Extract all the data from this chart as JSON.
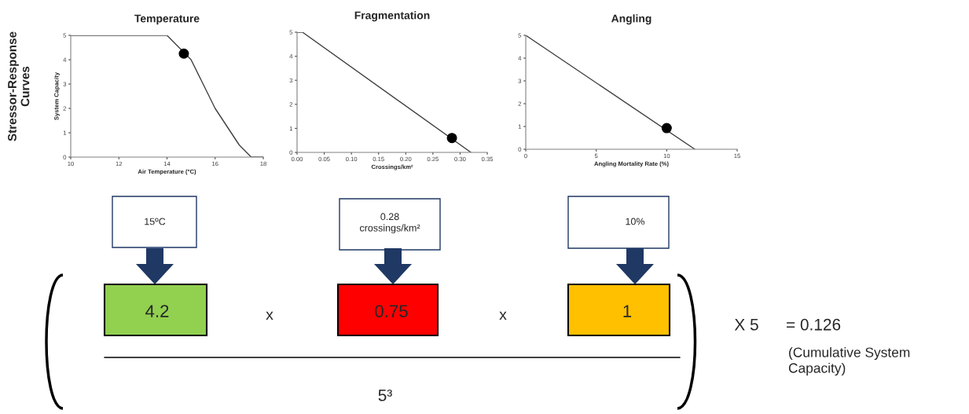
{
  "chart_data": [
    {
      "type": "line",
      "title": "Temperature",
      "xlabel": "Air Temperature (°C)",
      "ylabel": "System Capacity",
      "xlim": [
        10,
        18
      ],
      "xticks": [
        10,
        12,
        14,
        16,
        18
      ],
      "ylim": [
        0,
        5
      ],
      "yticks": [
        0,
        1,
        2,
        3,
        4,
        5
      ],
      "annotations": [
        "Stressor-Response\nCurves"
      ],
      "series": [
        {
          "type": "line",
          "color": "#404040",
          "x": [
            10,
            14,
            15,
            16,
            17,
            17.5,
            18
          ],
          "values": [
            5,
            5,
            4,
            2,
            0.5,
            0,
            0
          ]
        },
        {
          "type": "scatter",
          "color": "#000000",
          "marker": "circle",
          "x": [
            14.7
          ],
          "values": [
            4.25
          ]
        }
      ]
    },
    {
      "type": "line",
      "title": "Fragmentation",
      "xlabel": "Crossings/km²",
      "xlim": [
        0,
        0.35
      ],
      "xticks": [
        {
          "value": 0,
          "label": "0.00"
        },
        0.05,
        {
          "value": 0.1,
          "label": "0.10"
        },
        0.15,
        {
          "value": 0.2,
          "label": "0.20"
        },
        0.25,
        {
          "value": 0.3,
          "label": "0.30"
        },
        0.35
      ],
      "ylim": [
        0,
        5
      ],
      "yticks": [
        0,
        1,
        2,
        3,
        4,
        5
      ],
      "series": [
        {
          "type": "line",
          "color": "#404040",
          "x": [
            0,
            0.01,
            0.32
          ],
          "values": [
            5,
            5,
            0
          ]
        },
        {
          "type": "scatter",
          "color": "#000000",
          "marker": "circle",
          "x": [
            0.285
          ],
          "values": [
            0.6
          ]
        }
      ]
    },
    {
      "type": "line",
      "title": "Angling",
      "xlabel": "Angling Mortality Rate (%)",
      "xlim": [
        0,
        15
      ],
      "xticks": [
        0,
        5,
        10,
        15
      ],
      "ylim": [
        0,
        5
      ],
      "yticks": [
        0,
        1,
        2,
        3,
        4,
        5
      ],
      "series": [
        {
          "type": "line",
          "color": "#404040",
          "x": [
            0,
            12
          ],
          "values": [
            5,
            0
          ]
        },
        {
          "type": "scatter",
          "color": "#000000",
          "marker": "circle",
          "x": [
            10
          ],
          "values": [
            0.93
          ]
        }
      ]
    },
    {
      "type": "other",
      "colors": [
        "#92d050",
        "#ff0000",
        "#ffc000"
      ],
      "annotations": [
        "15ºC",
        "0.28\ncrossings/km²",
        "10%",
        "4.2",
        "x",
        "0.75",
        "x",
        "1",
        "5³",
        "X 5",
        "= 0.126",
        "(Cumulative System\nCapacity)"
      ]
    }
  ]
}
